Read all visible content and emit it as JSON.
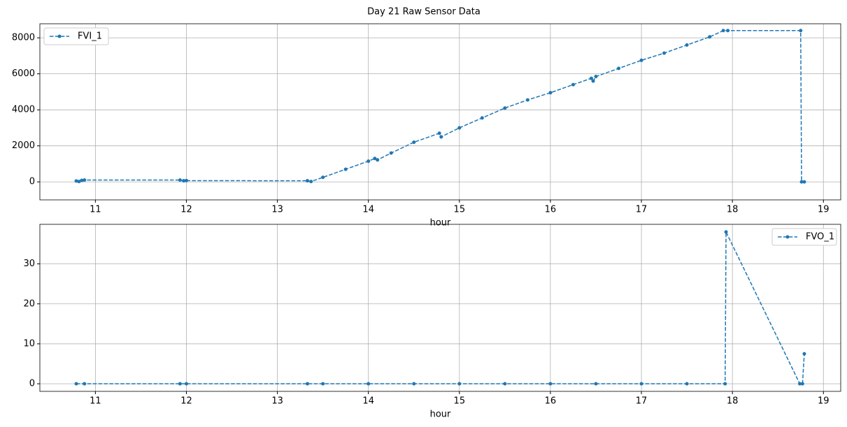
{
  "title": "Day 21 Raw Sensor Data",
  "chart_data": [
    {
      "type": "line",
      "xlabel": "hour",
      "legend": "upper left",
      "grid": true,
      "xlim": [
        10.39,
        19.19
      ],
      "xticks": [
        11,
        12,
        13,
        14,
        15,
        16,
        17,
        18,
        19
      ],
      "ylim": [
        -1000,
        8780
      ],
      "yticks": [
        0,
        2000,
        4000,
        6000,
        8000
      ],
      "x": [
        10.79,
        10.82,
        10.85,
        10.88,
        11.93,
        11.97,
        12.0,
        13.33,
        13.37,
        13.5,
        13.75,
        14.0,
        14.07,
        14.1,
        14.25,
        14.5,
        14.78,
        14.8,
        15.0,
        15.25,
        15.5,
        15.75,
        16.0,
        16.25,
        16.45,
        16.47,
        16.5,
        16.75,
        17.0,
        17.25,
        17.5,
        17.75,
        17.9,
        17.95,
        18.75,
        18.76,
        18.79
      ],
      "series": [
        {
          "name": "FVI_1",
          "color": "#1f77b4",
          "values": [
            50,
            20,
            80,
            100,
            100,
            60,
            70,
            60,
            20,
            250,
            700,
            1150,
            1300,
            1220,
            1600,
            2200,
            2700,
            2500,
            3000,
            3550,
            4100,
            4550,
            4950,
            5400,
            5750,
            5600,
            5850,
            6300,
            6750,
            7150,
            7600,
            8050,
            8400,
            8400,
            8400,
            0,
            0
          ]
        }
      ]
    },
    {
      "type": "line",
      "xlabel": "hour",
      "legend": "upper right",
      "grid": true,
      "xlim": [
        10.39,
        19.19
      ],
      "xticks": [
        11,
        12,
        13,
        14,
        15,
        16,
        17,
        18,
        19
      ],
      "ylim": [
        -1.9,
        39.9
      ],
      "yticks": [
        0,
        10,
        20,
        30
      ],
      "x": [
        10.79,
        10.88,
        11.93,
        12.0,
        13.33,
        13.5,
        14.0,
        14.5,
        15.0,
        15.5,
        16.0,
        16.5,
        17.0,
        17.5,
        17.92,
        17.93,
        18.74,
        18.77,
        18.79
      ],
      "series": [
        {
          "name": "FVO_1",
          "color": "#1f77b4",
          "values": [
            0,
            0,
            0,
            0,
            0,
            0,
            0,
            0,
            0,
            0,
            0,
            0,
            0,
            0,
            0,
            38,
            0,
            0,
            7.5
          ]
        }
      ]
    }
  ]
}
